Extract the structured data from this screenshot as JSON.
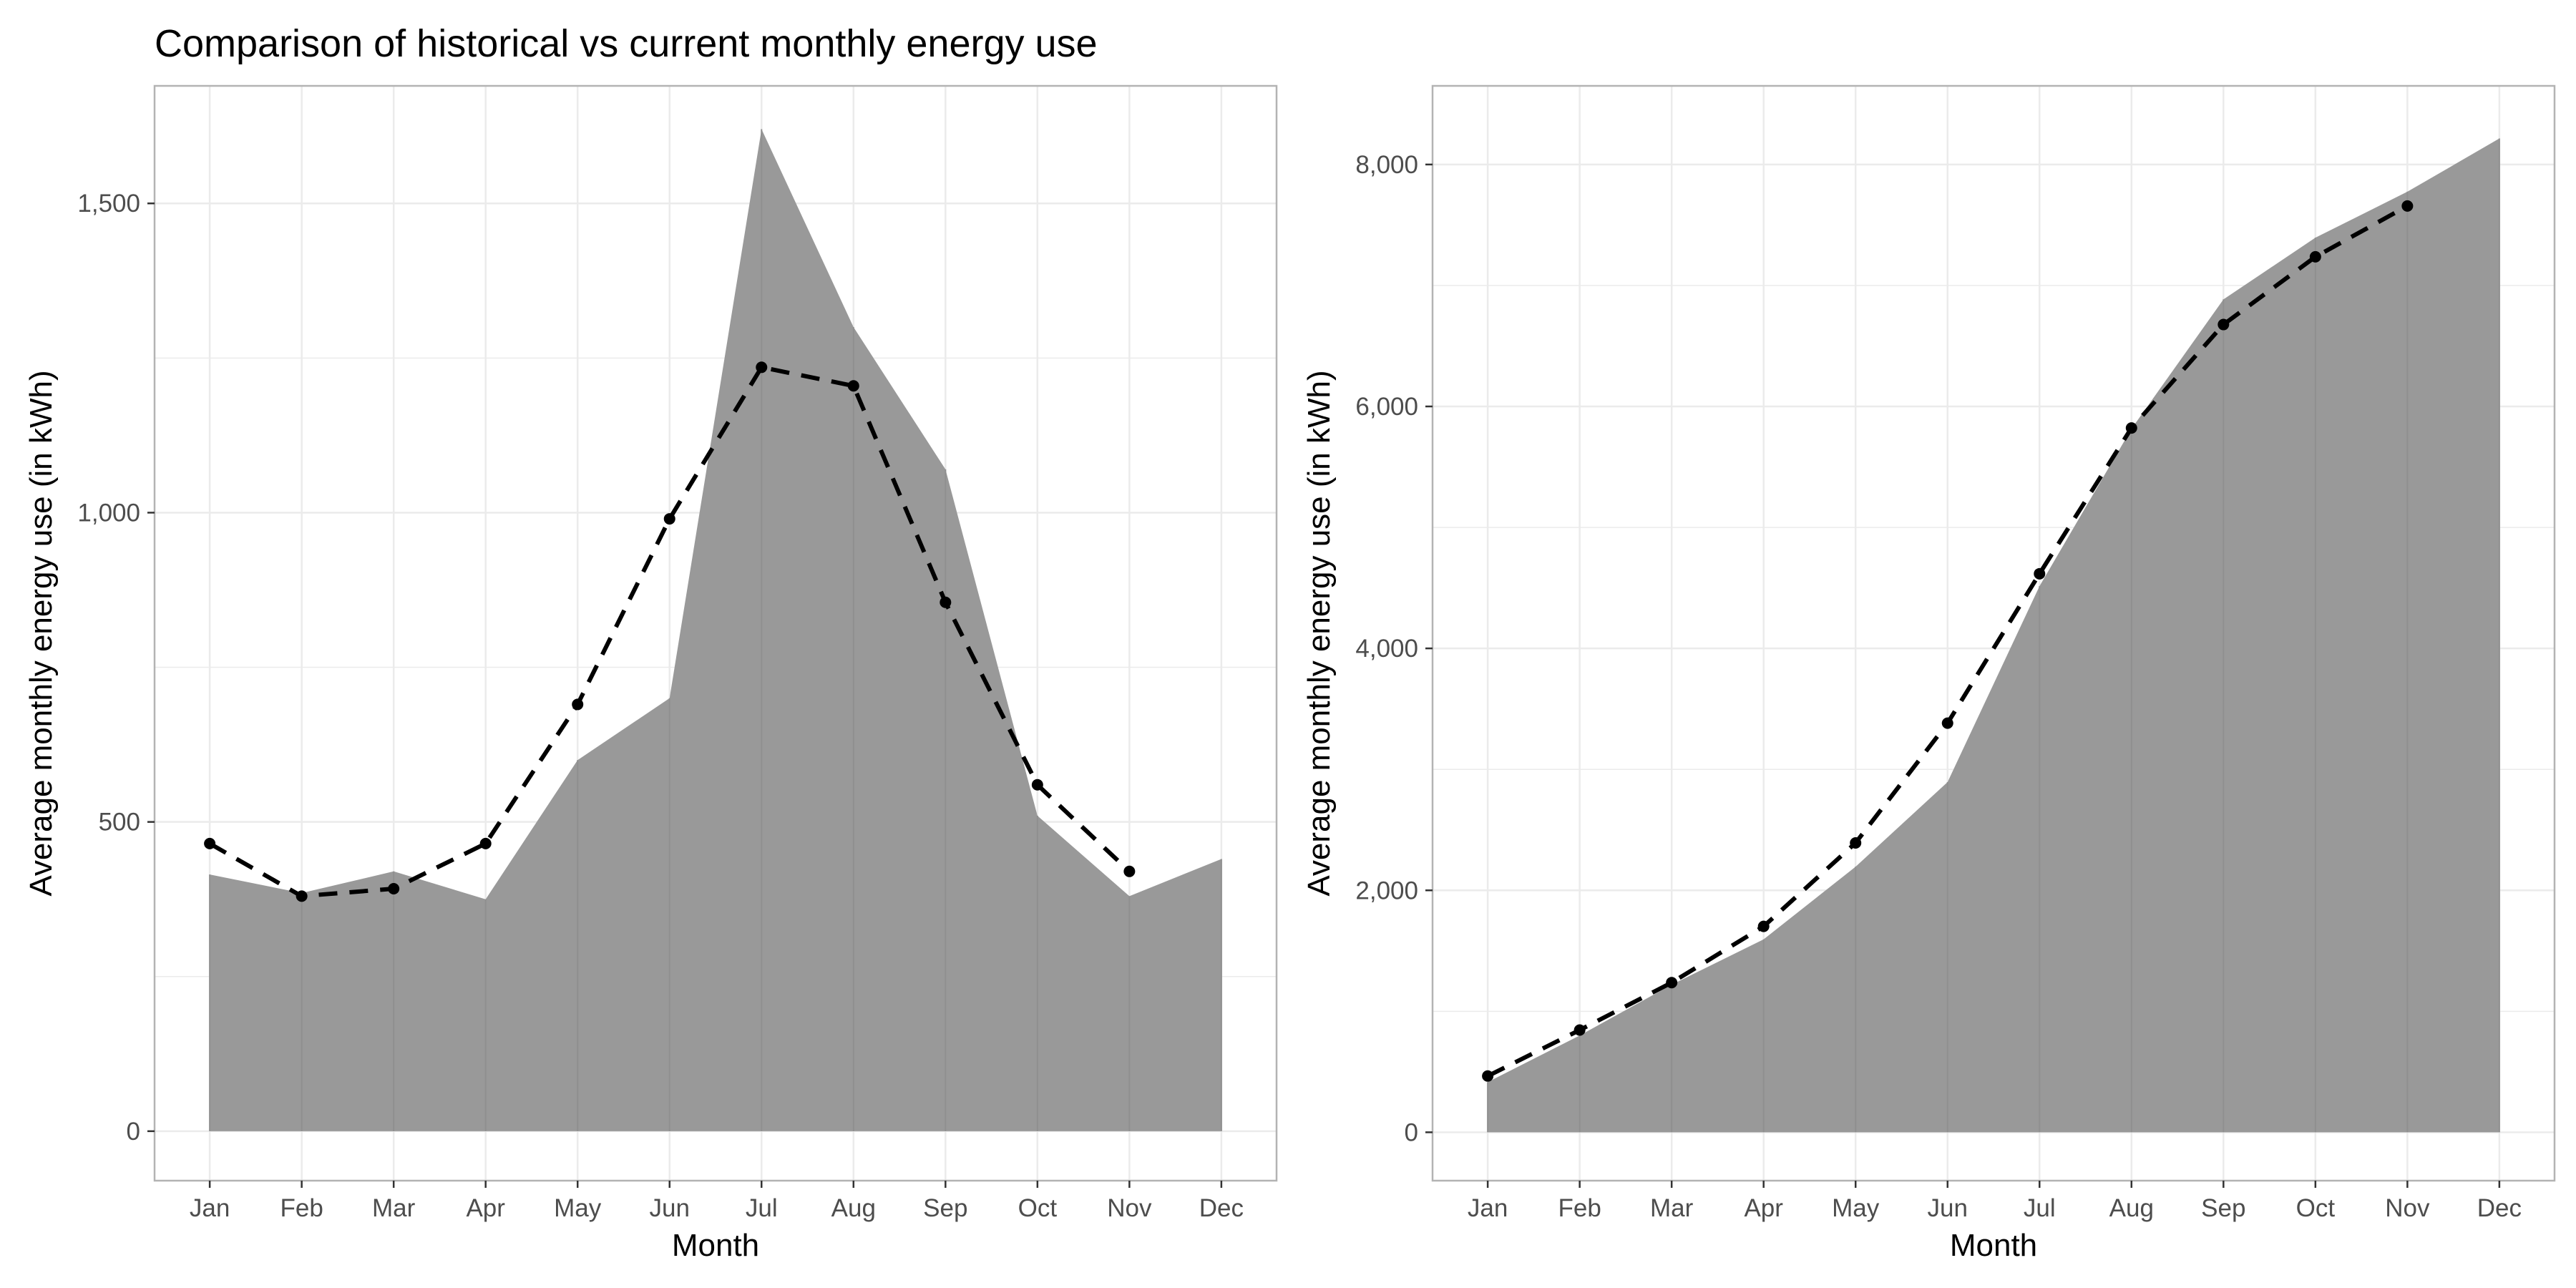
{
  "title": "Comparison of historical vs current monthly energy use",
  "colors": {
    "area_fill": "#999999",
    "line": "#000000",
    "grid": "#ebebeb",
    "panel_border": "#b3b3b3",
    "tick_text": "#4d4d4d"
  },
  "chart_data": [
    {
      "type": "area",
      "xlabel": "Month",
      "ylabel": "Average monthly energy use (in kWh)",
      "categories": [
        "Jan",
        "Feb",
        "Mar",
        "Apr",
        "May",
        "Jun",
        "Jul",
        "Aug",
        "Sep",
        "Oct",
        "Nov",
        "Dec"
      ],
      "ylim": [
        -80,
        1690
      ],
      "yticks": [
        0,
        500,
        1000,
        1500
      ],
      "ytick_labels": [
        "0",
        "500",
        "1,000",
        "1,500"
      ],
      "grid": true,
      "series": [
        {
          "kind": "area",
          "values": [
            415,
            385,
            420,
            375,
            600,
            700,
            1620,
            1300,
            1070,
            510,
            380,
            440
          ]
        },
        {
          "kind": "line-dashed-points",
          "values": [
            465,
            380,
            392,
            465,
            690,
            990,
            1235,
            1205,
            855,
            560,
            420,
            null
          ]
        }
      ]
    },
    {
      "type": "area",
      "xlabel": "Month",
      "ylabel": "Average monthly energy use (in kWh)",
      "categories": [
        "Jan",
        "Feb",
        "Mar",
        "Apr",
        "May",
        "Jun",
        "Jul",
        "Aug",
        "Sep",
        "Oct",
        "Nov",
        "Dec"
      ],
      "ylim": [
        -400,
        8650
      ],
      "yticks": [
        0,
        2000,
        4000,
        6000,
        8000
      ],
      "ytick_labels": [
        "0",
        "2,000",
        "4,000",
        "6,000",
        "8,000"
      ],
      "grid": true,
      "series": [
        {
          "kind": "area",
          "values": [
            415,
            800,
            1220,
            1595,
            2195,
            2895,
            4515,
            5815,
            6885,
            7395,
            7775,
            8215
          ]
        },
        {
          "kind": "line-dashed-points",
          "values": [
            465,
            845,
            1237,
            1702,
            2392,
            3382,
            4617,
            5822,
            6677,
            7237,
            7657,
            null
          ]
        }
      ]
    }
  ]
}
